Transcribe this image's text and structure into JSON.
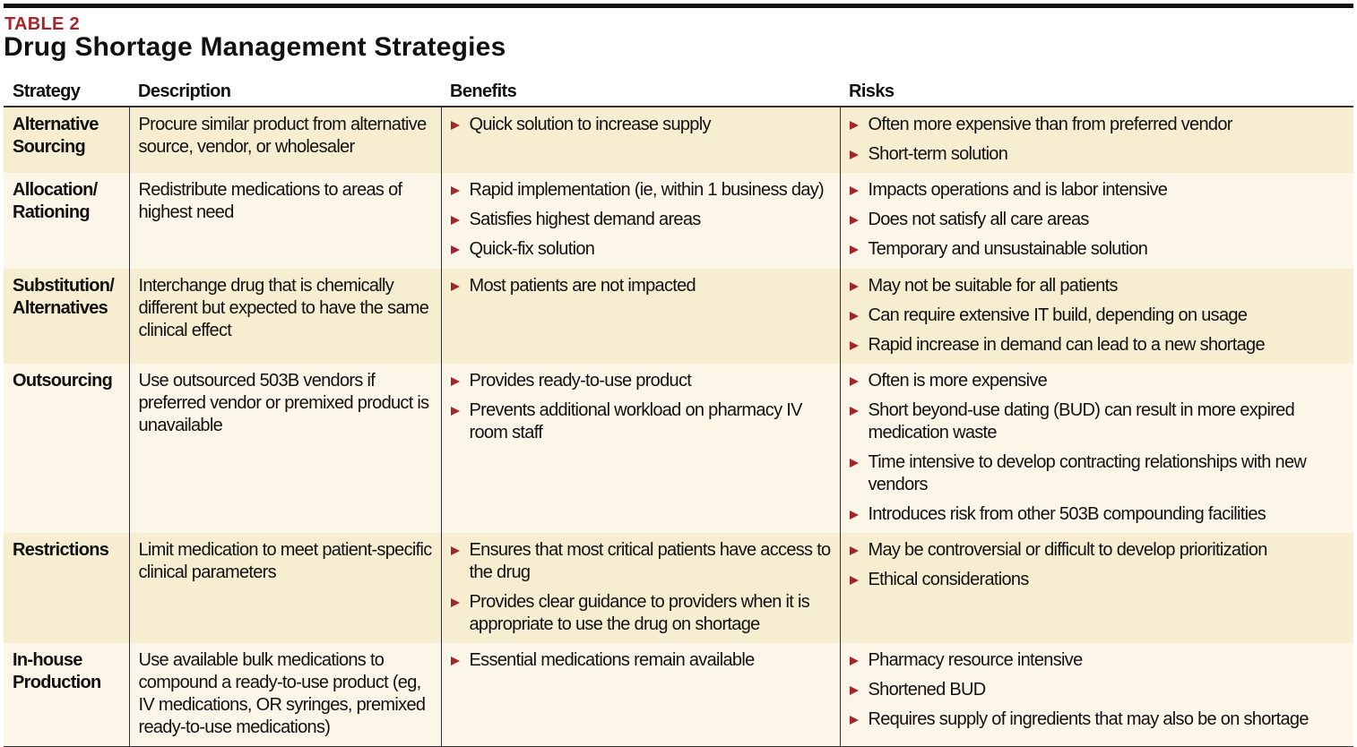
{
  "table_label": "TABLE 2",
  "title": "Drug Shortage Management Strategies",
  "colors": {
    "accent": "#a3262a",
    "row_odd": "#f7eed2",
    "row_even": "#fcf6e8"
  },
  "columns": [
    "Strategy",
    "Description",
    "Benefits",
    "Risks"
  ],
  "rows": [
    {
      "strategy": "Alternative Sourcing",
      "description": "Procure similar product from alternative source, vendor, or wholesaler",
      "benefits": [
        "Quick solution to increase supply"
      ],
      "risks": [
        "Often more expensive than from preferred vendor",
        "Short-term solution"
      ]
    },
    {
      "strategy": "Allocation/ Rationing",
      "description": "Redistribute medications to areas of highest need",
      "benefits": [
        "Rapid implementation (ie, within 1 business day)",
        "Satisfies highest demand areas",
        "Quick-fix solution"
      ],
      "risks": [
        "Impacts operations and is labor intensive",
        "Does not satisfy all care areas",
        "Temporary and unsustainable solution"
      ]
    },
    {
      "strategy": "Substitution/ Alternatives",
      "description": "Interchange drug that is chemically different but expected to have the same clinical effect",
      "benefits": [
        "Most patients are not impacted"
      ],
      "risks": [
        "May not be suitable for all patients",
        "Can require extensive IT build, depending on usage",
        "Rapid increase in demand can lead to a new shortage"
      ]
    },
    {
      "strategy": "Outsourcing",
      "description": "Use outsourced 503B vendors if preferred vendor or premixed product is unavailable",
      "benefits": [
        "Provides ready-to-use product",
        "Prevents additional workload on pharmacy IV room staff"
      ],
      "risks": [
        "Often is more expensive",
        "Short beyond-use dating (BUD) can result in more expired medication waste",
        "Time intensive to develop contracting relationships with new vendors",
        "Introduces risk from other 503B compounding facilities"
      ]
    },
    {
      "strategy": "Restrictions",
      "description": "Limit medication to meet patient-specific clinical parameters",
      "benefits": [
        "Ensures that most critical patients have access to the drug",
        "Provides clear guidance to providers when it is appropriate to use the drug on shortage"
      ],
      "risks": [
        "May be controversial or difficult to develop prioritization",
        "Ethical considerations"
      ]
    },
    {
      "strategy": "In-house Production",
      "description": "Use available bulk medications to compound a ready-to-use product (eg, IV medications, OR syringes, premixed ready-to-use medications)",
      "benefits": [
        "Essential medications remain available"
      ],
      "risks": [
        "Pharmacy resource intensive",
        "Shortened BUD",
        "Requires supply of ingredients that may also be on shortage"
      ]
    }
  ]
}
